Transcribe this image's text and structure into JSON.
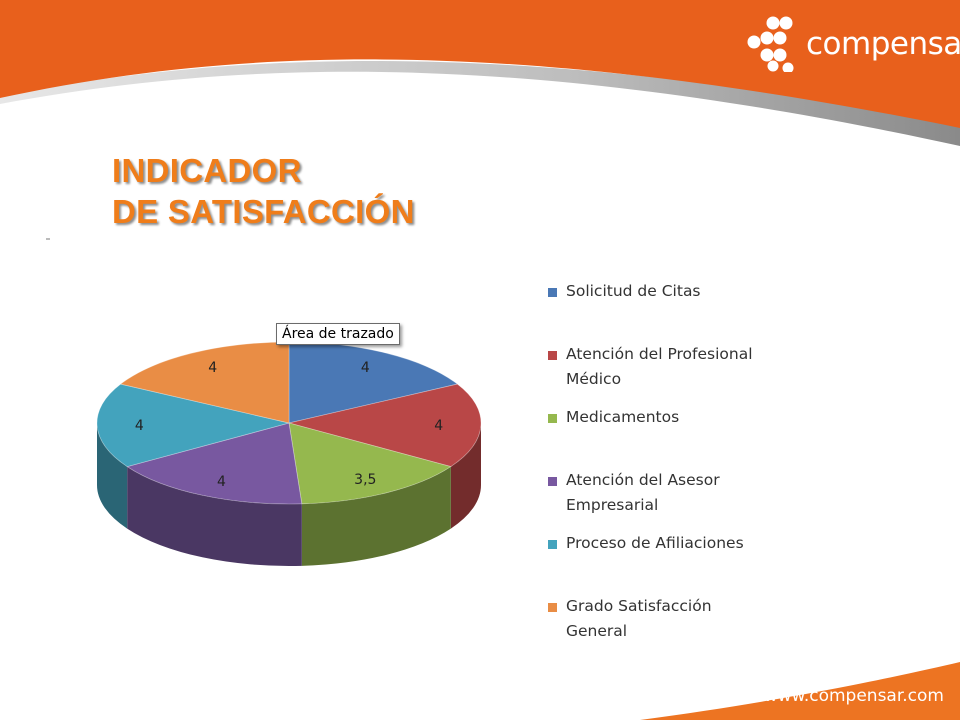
{
  "header": {
    "brand": "compensar",
    "brand_color": "#e8601c",
    "logo_icon": "compensar-dots-logo"
  },
  "title": {
    "line1": "INDICADOR",
    "line2": "DE SATISFACCIÓN",
    "color": "#ef7d1a"
  },
  "tooltip": {
    "text": "Área de trazado"
  },
  "footer": {
    "website": "www.compensar.com"
  },
  "chart_data": {
    "type": "pie",
    "style": "3d",
    "legend_position": "right",
    "categories": [
      "Solicitud de Citas",
      "Atención del Profesional Médico",
      "Medicamentos",
      "Atención del Asesor Empresarial",
      "Proceso de Afiliaciones",
      "Grado Satisfacción General"
    ],
    "legend_labels": [
      "Solicitud de Citas",
      "Atención del Profesional\nMédico",
      "Medicamentos",
      "Atención del Asesor\nEmpresarial",
      "Proceso de Afiliaciones",
      "Grado Satisfacción\nGeneral"
    ],
    "values": [
      4,
      4,
      3.5,
      4,
      4,
      4
    ],
    "data_labels": [
      "4",
      "4",
      "3,5",
      "4",
      "4",
      "4"
    ],
    "colors": [
      "#4a78b5",
      "#b94747",
      "#95b84e",
      "#7858a0",
      "#43a3bd",
      "#e98d45"
    ]
  }
}
